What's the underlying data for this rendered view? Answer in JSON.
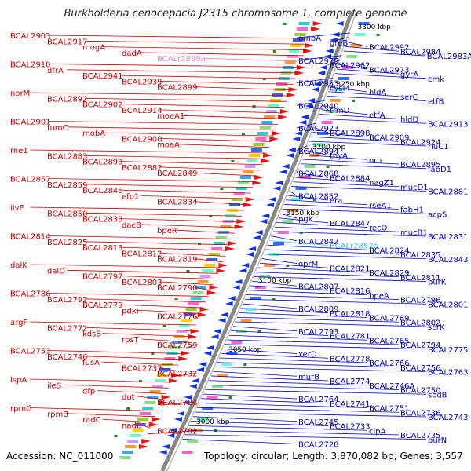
{
  "title": "Burkholderia cenocepacia J2315 chromosome 1, complete genome",
  "footer": {
    "accession": "Accession: NC_011000",
    "summary": "Topology: circular; Length: 3,870,082 bp; Genes: 3,557"
  },
  "colors": {
    "left_label": "#cc0000",
    "right_label": "#0000cc",
    "rna_label_left": "#ee88cc",
    "rna_label_right": "#33bbee",
    "backbone": "#888888",
    "tick_mark": "#228822",
    "forward_arrow": "#ee1111",
    "reverse_arrow": "#1133ee"
  },
  "scale_labels": [
    "3300 kbp",
    "3250 kbp",
    "3200 kbp",
    "3150 kbp",
    "3100 kbp",
    "3050 kbp",
    "3000 kbp"
  ],
  "left_genes": [
    "BCAL2903",
    "BCAL2917",
    "mogA",
    "dadA",
    "BCALr2899a",
    "BCAL2910",
    "dfrA",
    "BCAL2941",
    "BCAL2939",
    "BCAL2899",
    "norM",
    "BCAL2892",
    "BCAL2902",
    "BCAL2914",
    "moeA1",
    "BCAL2901",
    "fumC",
    "mobA",
    "BCAL2900",
    "moaA",
    "rne1",
    "BCAL2883",
    "BCAL2893",
    "BCAL2882",
    "BCAL2849",
    "BCAL2857",
    "BCAL2859",
    "BCAL2846",
    "efp1",
    "BCAL2834",
    "ilvE",
    "BCAL2850",
    "BCAL2833",
    "dacB",
    "bpeR",
    "BCAL2814",
    "BCAL2825",
    "BCAL2813",
    "BCAL2812",
    "BCAL2819",
    "dalK",
    "dalD",
    "BCAL2797",
    "BCAL2803",
    "BCAL2790",
    "BCAL2786",
    "BCAL2792",
    "BCAL2779",
    "pdxH",
    "BCAL2776",
    "argF",
    "BCAL2772",
    "kdsB",
    "rpsT",
    "BCAL2759",
    "BCAL2753",
    "BCAL2746",
    "fusA",
    "BCAL2737",
    "BCAL2732",
    "lspA",
    "ileS",
    "dfp",
    "dut",
    "BCAL2723",
    "rpmG",
    "rpmB",
    "radC",
    "nadB",
    "BCAL2702"
  ],
  "right_genes": [
    "ompA",
    "greB",
    "BCAL2992",
    "BCAL2984",
    "BCAL2983A",
    "BCAL2975",
    "BCAL2962",
    "BCAL2973",
    "gyrA",
    "cmk",
    "BCAL2953",
    "cysM",
    "hldA",
    "serC",
    "etfB",
    "BCAL2940",
    "trmD",
    "etfA",
    "hldD",
    "BCAL2913",
    "BCAL2923",
    "BCAL2898",
    "BCAL2909",
    "BCAL2924",
    "rluC1",
    "BCAL2894",
    "thyA",
    "orn",
    "BCAL2895",
    "fabD1",
    "BCAL2868",
    "BCAL2884",
    "nagZ1",
    "mucD1",
    "BCAL2881",
    "BCAL2852",
    "era",
    "rseA1",
    "fabH1",
    "acpS",
    "pgk",
    "BCAL2847",
    "recO",
    "mucB1",
    "BCAL2831",
    "BCAL2842",
    "BCALr2852a",
    "BCAL2824",
    "BCAL2835",
    "BCAL2843",
    "oprM",
    "BCAL2821",
    "BCAL2829",
    "BCAL2811",
    "purK",
    "BCAL2807",
    "BCAL2816",
    "bpeA",
    "BCAL2796",
    "BCAL2801",
    "BCAL2809",
    "BCAL2818",
    "BCAL2789",
    "BCAL2802",
    "scrK",
    "BCAL2793",
    "BCAL2781",
    "BCAL2785",
    "BCAL2794",
    "BCAL2775",
    "xerD",
    "BCAL2778",
    "BCAL2766",
    "BCAL2756",
    "BCAL2763",
    "murB",
    "BCAL2774",
    "BCAL2746A",
    "BCAL2750",
    "sodB",
    "BCAL2764",
    "BCAL2741",
    "BCAL2751",
    "BCAL2736",
    "BCAL2743",
    "BCAL2745",
    "BCAL2733",
    "clpA",
    "BCAL2735",
    "purN",
    "BCAL2728"
  ]
}
